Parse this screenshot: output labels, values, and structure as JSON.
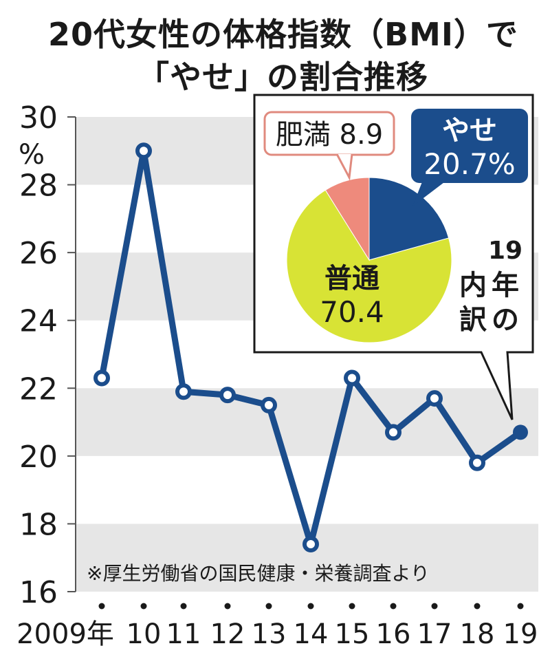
{
  "title_lines": [
    "20代女性の体格指数（BMI）で",
    "「やせ」の割合推移"
  ],
  "source_note": "※厚生労働省の国民健康・栄養調査より",
  "colors": {
    "line": "#1b4d8c",
    "band": "#e6e6e6",
    "thin": "#1b4d8c",
    "normal": "#d8e335",
    "obese": "#ee8a7c",
    "obese_border": "#e08a7e"
  },
  "chart_data": {
    "type": "line",
    "title": "20代女性の体格指数（BMI）で「やせ」の割合推移",
    "y_unit": "%",
    "ylim": [
      16,
      30
    ],
    "y_ticks": [
      16,
      18,
      20,
      22,
      24,
      26,
      28,
      30
    ],
    "x_labels": [
      "2009年",
      "10",
      "11",
      "12",
      "13",
      "14",
      "15",
      "16",
      "17",
      "18",
      "19"
    ],
    "values": [
      22.3,
      29.0,
      21.9,
      21.8,
      21.5,
      17.4,
      22.3,
      20.7,
      21.7,
      19.8,
      20.7
    ],
    "grid_bands": true,
    "inset_pie": {
      "type": "pie",
      "caption_lines": [
        "19",
        "年",
        "の",
        "内",
        "訳"
      ],
      "slices": [
        {
          "name": "やせ",
          "value": 20.7,
          "label_lines": [
            "やせ",
            "20.7%"
          ]
        },
        {
          "name": "普通",
          "value": 70.4,
          "label_lines": [
            "普通",
            "70.4"
          ]
        },
        {
          "name": "肥満",
          "value": 8.9,
          "label_lines": [
            "肥満 8.9"
          ]
        }
      ]
    }
  }
}
